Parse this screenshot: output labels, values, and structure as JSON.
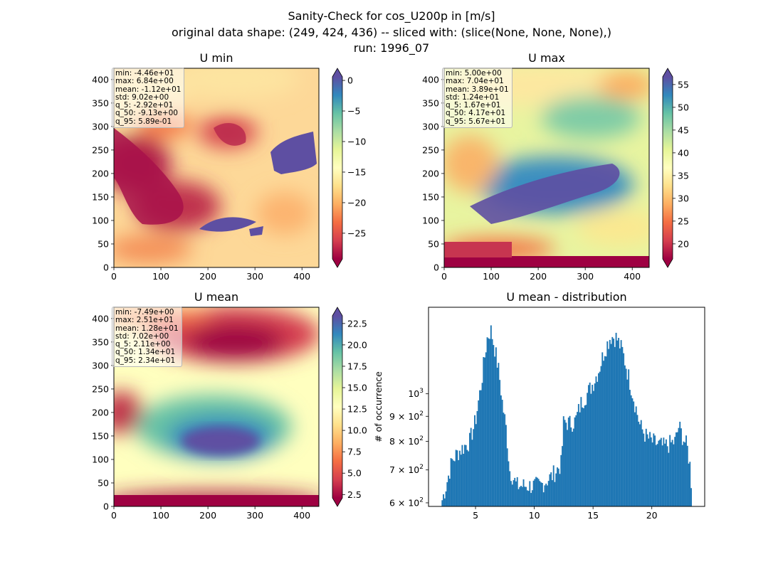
{
  "suptitle": {
    "line1": "Sanity-Check for cos_U200p in [m/s]",
    "line2": "original data shape: (249, 424, 436) -- sliced with: (slice(None, None, None),)",
    "line3": "run: 1996_07"
  },
  "panels": {
    "umin": {
      "title": "U min",
      "stats": [
        "min: -4.46e+01",
        "max: 6.84e+00",
        "mean: -1.12e+01",
        "std: 9.02e+00",
        "q_5: -2.92e+01",
        "q_50: -9.13e+00",
        "q_95: 5.89e-01"
      ],
      "colorbar_ticks": [
        "0",
        "−5",
        "−10",
        "−15",
        "−20",
        "−25"
      ]
    },
    "umax": {
      "title": "U max",
      "stats": [
        "min: 5.00e+00",
        "max: 7.04e+01",
        "mean: 3.89e+01",
        "std: 1.24e+01",
        "q_5: 1.67e+01",
        "q_50: 4.17e+01",
        "q_95: 5.67e+01"
      ],
      "colorbar_ticks": [
        "55",
        "50",
        "45",
        "40",
        "35",
        "30",
        "25",
        "20"
      ]
    },
    "umean": {
      "title": "U mean",
      "stats": [
        "min: -7.49e+00",
        "max: 2.51e+01",
        "mean: 1.28e+01",
        "std: 7.02e+00",
        "q_5: 2.11e+00",
        "q_50: 1.34e+01",
        "q_95: 2.34e+01"
      ],
      "colorbar_ticks": [
        "22.5",
        "20.0",
        "17.5",
        "15.0",
        "12.5",
        "10.0",
        "7.5",
        "5.0",
        "2.5"
      ]
    },
    "hist": {
      "title": "U mean - distribution",
      "ylabel": "# of occurrence"
    }
  },
  "map_axes": {
    "x_ticks": [
      "0",
      "100",
      "200",
      "300",
      "400"
    ],
    "y_ticks": [
      "0",
      "50",
      "100",
      "150",
      "200",
      "250",
      "300",
      "350",
      "400"
    ]
  },
  "colors": {
    "spectral": [
      "#9e0142",
      "#d53e4f",
      "#f46d43",
      "#fdae61",
      "#fee08b",
      "#ffffbf",
      "#e6f598",
      "#abdda4",
      "#66c2a5",
      "#3288bd",
      "#5e4fa2"
    ],
    "hist_bar": "#1f77b4"
  },
  "chart_data": [
    {
      "type": "heatmap",
      "title": "U min",
      "xlim": [
        0,
        436
      ],
      "ylim": [
        0,
        424
      ],
      "colorbar": {
        "vmin": -29.2,
        "vmax": 0.589,
        "extend": "both",
        "cmap": "Spectral"
      },
      "stats": {
        "min": -44.6,
        "max": 6.84,
        "mean": -11.2,
        "std": 9.02,
        "q_5": -29.2,
        "q_50": -9.13,
        "q_95": 0.589
      }
    },
    {
      "type": "heatmap",
      "title": "U max",
      "xlim": [
        0,
        436
      ],
      "ylim": [
        0,
        424
      ],
      "colorbar": {
        "vmin": 16.7,
        "vmax": 56.7,
        "extend": "both",
        "cmap": "Spectral"
      },
      "stats": {
        "min": 5.0,
        "max": 70.4,
        "mean": 38.9,
        "std": 12.4,
        "q_5": 16.7,
        "q_50": 41.7,
        "q_95": 56.7
      }
    },
    {
      "type": "heatmap",
      "title": "U mean",
      "xlim": [
        0,
        436
      ],
      "ylim": [
        0,
        424
      ],
      "colorbar": {
        "vmin": 2.11,
        "vmax": 23.4,
        "extend": "both",
        "cmap": "Spectral"
      },
      "stats": {
        "min": -7.49,
        "max": 25.1,
        "mean": 12.8,
        "std": 7.02,
        "q_5": 2.11,
        "q_50": 13.4,
        "q_95": 23.4
      }
    },
    {
      "type": "bar",
      "title": "U mean - distribution",
      "ylabel": "# of occurrence",
      "yscale": "log",
      "xlim": [
        1.0,
        24.5
      ],
      "ylim": [
        590,
        1500
      ],
      "x_ticks": [
        5,
        10,
        15,
        20
      ],
      "y_ticks": [
        {
          "value": 600,
          "base": "6",
          "exp": "2"
        },
        {
          "value": 700,
          "base": "7",
          "exp": "2"
        },
        {
          "value": 800,
          "base": "8",
          "exp": "2"
        },
        {
          "value": 900,
          "base": "9",
          "exp": "2"
        },
        {
          "value": 1000,
          "base": "",
          "exp": "3"
        }
      ],
      "bin_range": [
        2.11,
        23.4
      ],
      "curve": [
        [
          2.1,
          600
        ],
        [
          2.5,
          650
        ],
        [
          3.0,
          730
        ],
        [
          3.5,
          760
        ],
        [
          4.0,
          780
        ],
        [
          4.5,
          800
        ],
        [
          5.0,
          880
        ],
        [
          5.5,
          1050
        ],
        [
          6.0,
          1300
        ],
        [
          6.3,
          1350
        ],
        [
          6.6,
          1250
        ],
        [
          7.0,
          1100
        ],
        [
          7.3,
          950
        ],
        [
          7.6,
          850
        ],
        [
          7.9,
          700
        ],
        [
          8.5,
          650
        ],
        [
          9.5,
          650
        ],
        [
          10.5,
          650
        ],
        [
          11.5,
          680
        ],
        [
          12.3,
          720
        ],
        [
          12.5,
          880
        ],
        [
          13.0,
          870
        ],
        [
          13.5,
          880
        ],
        [
          14.0,
          960
        ],
        [
          14.5,
          1000
        ],
        [
          15.0,
          1050
        ],
        [
          15.5,
          1120
        ],
        [
          16.0,
          1230
        ],
        [
          16.5,
          1310
        ],
        [
          17.0,
          1300
        ],
        [
          17.5,
          1220
        ],
        [
          18.0,
          1090
        ],
        [
          18.5,
          970
        ],
        [
          19.0,
          860
        ],
        [
          19.5,
          820
        ],
        [
          20.0,
          800
        ],
        [
          20.5,
          790
        ],
        [
          21.0,
          780
        ],
        [
          21.5,
          790
        ],
        [
          22.0,
          800
        ],
        [
          22.3,
          860
        ],
        [
          22.6,
          820
        ],
        [
          23.0,
          780
        ],
        [
          23.3,
          700
        ],
        [
          23.4,
          620
        ]
      ]
    }
  ]
}
